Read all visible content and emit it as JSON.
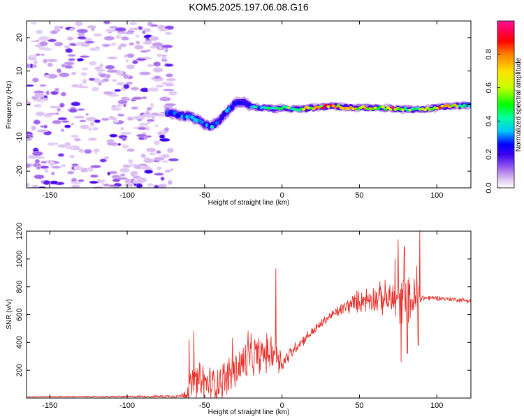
{
  "title": "KOM5.2025.197.06.08.G16",
  "chart_data": [
    {
      "type": "heatmap",
      "xlabel": "Height of straight line (km)",
      "ylabel": "Frequency (Hz)",
      "xlim": [
        -165,
        122
      ],
      "ylim": [
        -25,
        25
      ],
      "xticks": [
        -150,
        -100,
        -50,
        0,
        50,
        100
      ],
      "yticks": [
        -20,
        -10,
        0,
        10,
        20
      ],
      "grid": false,
      "colorbar": {
        "label": "Normalized spectral amplitude",
        "range": [
          0,
          1
        ],
        "ticks": [
          "0.0",
          "0.2",
          "0.4",
          "0.6",
          "0.8"
        ],
        "colors": [
          "#ffffff",
          "#d7b8f0",
          "#9d5ff0",
          "#3a00f0",
          "#0000ff",
          "#00c8ff",
          "#00ffa0",
          "#00ff00",
          "#c8ff00",
          "#ffe000",
          "#ff8000",
          "#ff0000",
          "#ff0060",
          "#ff1493"
        ]
      },
      "ridge": {
        "x": [
          -72,
          -65,
          -60,
          -55,
          -50,
          -45,
          -40,
          -35,
          -30,
          -25,
          -20,
          -15,
          -10,
          -5,
          0,
          10,
          20,
          30,
          40,
          50,
          60,
          70,
          80,
          90,
          100,
          110,
          120
        ],
        "frequency": [
          -2.5,
          -3.5,
          -3.5,
          -4.5,
          -6.0,
          -6.5,
          -4.5,
          -2.0,
          0.5,
          0.5,
          -0.5,
          -1.0,
          -1.0,
          -1.5,
          -1.0,
          -1.5,
          -1.0,
          -0.5,
          -0.8,
          -1.0,
          -1.0,
          -1.2,
          -1.5,
          -1.5,
          -1.0,
          -0.5,
          -0.3
        ],
        "amplitude": [
          0.3,
          0.35,
          0.35,
          0.4,
          0.35,
          0.4,
          0.3,
          0.45,
          0.3,
          0.3,
          0.35,
          0.45,
          0.45,
          0.5,
          0.5,
          0.6,
          0.7,
          0.85,
          0.65,
          0.7,
          0.65,
          0.85,
          0.55,
          0.55,
          0.8,
          0.7,
          0.4
        ]
      }
    },
    {
      "type": "line",
      "xlabel": "Height of straight line (km)",
      "ylabel": "SNR (v/v)",
      "xlim": [
        -165,
        122
      ],
      "ylim": [
        0,
        1200
      ],
      "xticks": [
        -150,
        -100,
        -50,
        0,
        50,
        100
      ],
      "yticks": [
        200,
        400,
        600,
        800,
        1000,
        1200
      ],
      "color": "#e8302a",
      "grid": false,
      "envelope": {
        "x": [
          -165,
          -120,
          -80,
          -65,
          -62,
          -58,
          -55,
          -50,
          -45,
          -40,
          -35,
          -30,
          -25,
          -20,
          -15,
          -10,
          -5,
          -2,
          0,
          10,
          20,
          30,
          40,
          50,
          60,
          70,
          75,
          80,
          85,
          88,
          90,
          100,
          110,
          122
        ],
        "base": [
          10,
          10,
          12,
          15,
          40,
          90,
          120,
          110,
          100,
          120,
          150,
          200,
          250,
          290,
          310,
          320,
          340,
          300,
          250,
          380,
          480,
          580,
          650,
          700,
          720,
          710,
          700,
          700,
          700,
          700,
          720,
          720,
          710,
          700
        ],
        "spread": [
          5,
          5,
          10,
          15,
          80,
          150,
          170,
          170,
          150,
          160,
          180,
          180,
          190,
          180,
          170,
          160,
          150,
          120,
          80,
          50,
          40,
          40,
          60,
          100,
          120,
          160,
          220,
          200,
          200,
          220,
          30,
          20,
          20,
          20
        ]
      },
      "spikes": [
        {
          "x": -60,
          "y": 420
        },
        {
          "x": -57,
          "y": 480
        },
        {
          "x": -32,
          "y": 430
        },
        {
          "x": -22,
          "y": 480
        },
        {
          "x": -4,
          "y": 930
        },
        {
          "x": -2,
          "y": 180
        },
        {
          "x": 73,
          "y": 1000
        },
        {
          "x": 75,
          "y": 1140
        },
        {
          "x": 77,
          "y": 260
        },
        {
          "x": 79,
          "y": 1090
        },
        {
          "x": 81,
          "y": 320
        },
        {
          "x": 87,
          "y": 950
        },
        {
          "x": 88,
          "y": 380
        },
        {
          "x": 89,
          "y": 1210
        }
      ]
    }
  ]
}
